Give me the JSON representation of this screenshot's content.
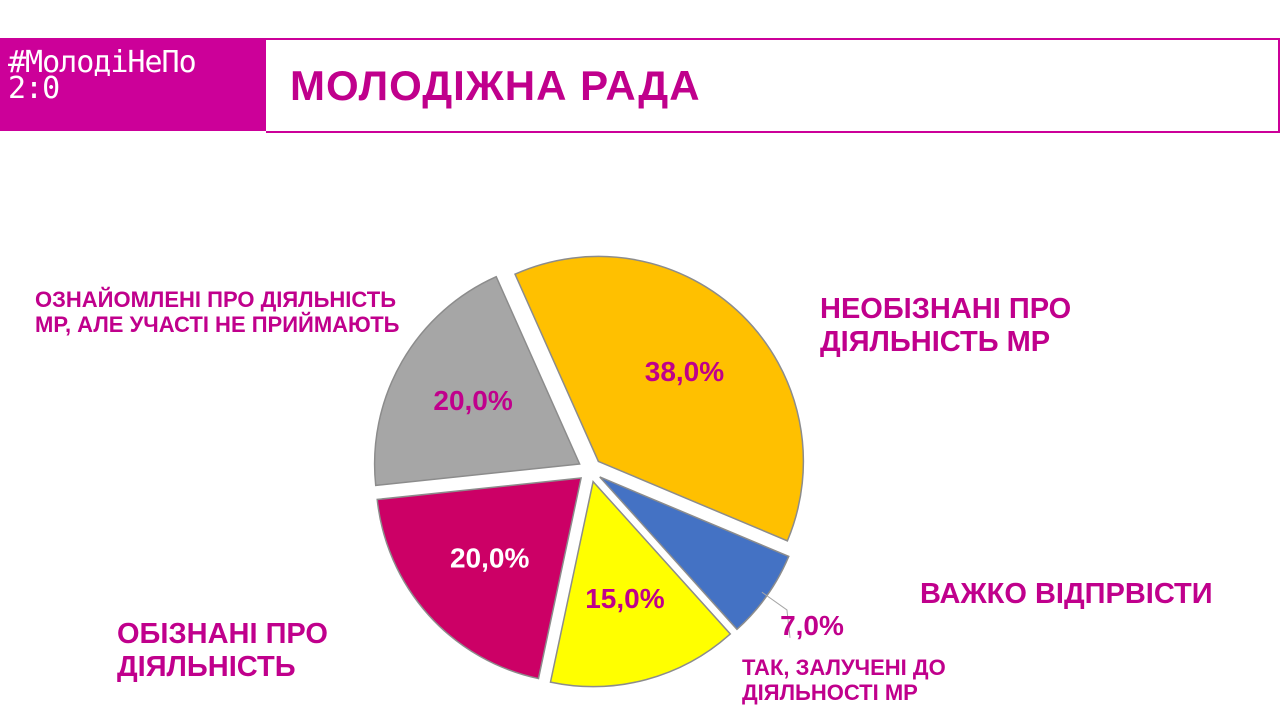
{
  "header": {
    "logo": [
      "#МолодіНеПо",
      "2:0"
    ],
    "title": "МОЛОДІЖНА РАДА"
  },
  "chart_data": {
    "type": "pie",
    "categories": [
      "НЕОБІЗНАНІ ПРО ДІЯЛЬНІСТЬ МР",
      "ВАЖКО ВІДПРВІСТИ",
      "ТАК, ЗАЛУЧЕНІ ДО ДІЯЛЬНОСТІ МР",
      "ОБІЗНАНІ ПРО ДІЯЛЬНІСТЬ",
      "ОЗНАЙОМЛЕНІ ПРО ДІЯЛЬНІСТЬ МР, АЛЕ УЧАСТІ НЕ ПРИЙМАЮТЬ"
    ],
    "values": [
      38,
      7,
      15,
      20,
      20
    ],
    "value_labels": [
      "38,0%",
      "7,0%",
      "15,0%",
      "20,0%",
      "20,0%"
    ],
    "colors": [
      "#FFC000",
      "#4472C4",
      "#FFFF00",
      "#CC0066",
      "#A6A6A6"
    ],
    "value_label_colors": [
      "#C0008C",
      "#C0008C",
      "#C0008C",
      "#FFFFFF",
      "#C0008C"
    ]
  }
}
